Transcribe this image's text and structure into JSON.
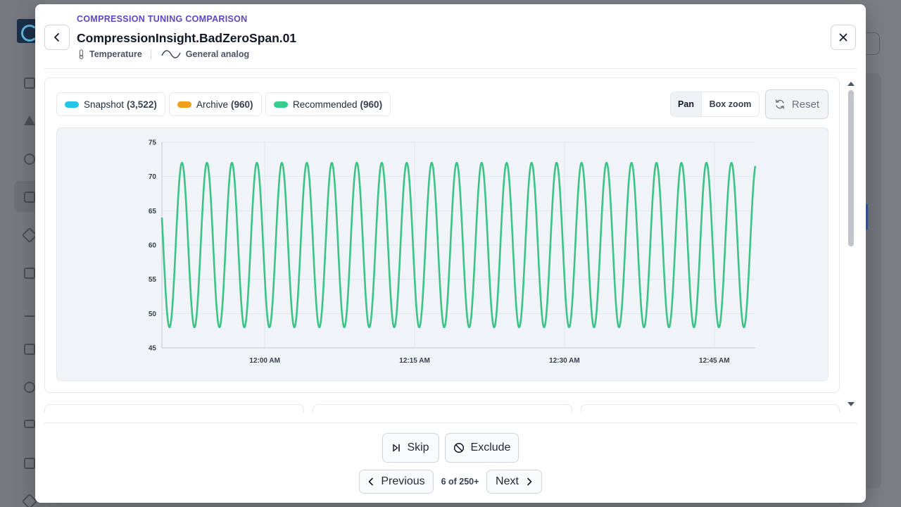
{
  "modal": {
    "eyebrow": "COMPRESSION TUNING COMPARISON",
    "title": "CompressionInsight.BadZeroSpan.01",
    "tags": [
      {
        "icon": "thermometer-icon",
        "label": "Temperature"
      },
      {
        "icon": "sine-wave-icon",
        "label": "General analog"
      }
    ]
  },
  "legend": [
    {
      "label": "Snapshot",
      "count": "(3,522)",
      "color": "#22c5e8"
    },
    {
      "label": "Archive",
      "count": "(960)",
      "color": "#f2a01b"
    },
    {
      "label": "Recommended",
      "count": "(960)",
      "color": "#35cf8d"
    }
  ],
  "toolbar": {
    "pan_label": "Pan",
    "box_zoom_label": "Box zoom",
    "reset_label": "Reset"
  },
  "chart_data": {
    "type": "line",
    "x_tick_labels": [
      "12:00 AM",
      "12:15 AM",
      "12:30 AM",
      "12:45 AM"
    ],
    "y_ticks": [
      45,
      50,
      55,
      60,
      65,
      70,
      75
    ],
    "ylim": [
      45,
      75
    ],
    "x_range_minutes_after_midnight": [
      -10.3,
      49.1
    ],
    "grid": true,
    "series": [
      {
        "name": "Recommended",
        "color": "#3cc486",
        "waveform": "sine",
        "min": 48,
        "max": 72,
        "period_minutes": 2.5,
        "start_value": 64,
        "start_direction": "falling"
      }
    ]
  },
  "footer": {
    "skip_label": "Skip",
    "exclude_label": "Exclude",
    "previous_label": "Previous",
    "next_label": "Next",
    "page_indicator": "6 of 250+"
  }
}
